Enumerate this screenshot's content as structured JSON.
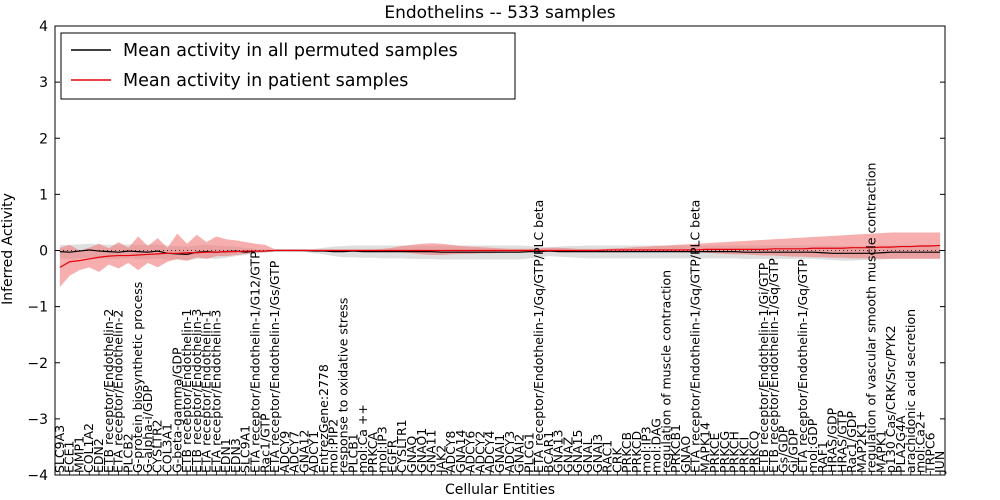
{
  "chart_data": {
    "type": "line",
    "title": "Endothelins -- 533 samples",
    "xlabel": "Cellular Entities",
    "ylabel": "Inferred Activity",
    "ylim": [
      -4,
      4
    ],
    "yticks": [
      "−4",
      "−3",
      "−2",
      "−1",
      "0",
      "1",
      "2",
      "3",
      "4"
    ],
    "grid": false,
    "legend_position": "top-left",
    "colors": {
      "permuted_line": "#000000",
      "permuted_band": "#c8c8c8",
      "patient_line": "#e8000b",
      "patient_band": "#f07878"
    },
    "categories": [
      "SLC9A3",
      "ECE1",
      "MMP1",
      "COL1A2",
      "EDN2",
      "ETB receptor/Endothelin-2",
      "ETA receptor/Endothelin-2",
      "PLCB2",
      "G-protein biosynthetic process",
      "G-alpha-i/GDP",
      "CYSLTR2",
      "COL3A1",
      "G-beta-gamma/GDP",
      "ETB receptor/Endothelin-1",
      "ETB receptor/Endothelin-3",
      "ETA receptor/Endothelin-1",
      "ETA receptor/Endothelin-3",
      "EDN1",
      "EDN3",
      "SLC9A1",
      "ETA receptor/Endothelin-1/G12/GTP",
      "Rac1/GTP",
      "ETA receptor/Endothelin-1/Gs/GTP",
      "ADCY9",
      "ADCY7",
      "GNA12",
      "ADCY1",
      "EntrezGene:2778",
      "mol:PIP2",
      "response to oxidative stress",
      "PLCB1",
      "mol:Ca ++",
      "PRKCA",
      "mol:IP3",
      "EGFR",
      "CYSLTR1",
      "GNAQ",
      "GNAO1",
      "GNA11",
      "JAK2",
      "ADCY8",
      "GNA14",
      "ADCY6",
      "ADCY2",
      "ADCY4",
      "GNAI1",
      "ADCY3",
      "GNAI2",
      "PLCG1",
      "ETA receptor/Endothelin-1/Gq/GTP/PLC beta",
      "BCAR1",
      "GNA13",
      "GNAZ",
      "GNA15",
      "GNAL",
      "GNAI3",
      "RAC1",
      "CRK",
      "PRKCB",
      "PRKCD",
      "mol:IP3",
      "mol:DAG",
      "regulation of muscle contraction",
      "PRKCB1",
      "GNAO",
      "ETA receptor/Endothelin-1/Gq/GTP/PLC beta",
      "MAPK14",
      "PRKCE",
      "PRKCG",
      "PRKCH",
      "PRKCI",
      "PRKCQ",
      "ETB receptor/Endothelin-1/Gi/GTP",
      "ETB receptor/Endothelin-1/Gq/GTP",
      "Gs/GDP",
      "Gi/GDP",
      "ETA receptor/Endothelin-1/Gq/GTP",
      "mol:GDP",
      "RAF1",
      "HRAS/GDP",
      "HRAS/GTP",
      "Rac1/GDP",
      "MAP2K1",
      "regulation of vascular smooth muscle contraction",
      "MAPK1",
      "p130 Cas/CRK/Src/PYK2",
      "PLA2G4A",
      "arachidonic acid secretion",
      "mol:Ca2+",
      "TRPC6",
      "JUN"
    ],
    "series": [
      {
        "name": "Mean activity in all permuted samples",
        "values": [
          -0.02,
          -0.03,
          -0.01,
          0.01,
          -0.01,
          -0.02,
          -0.03,
          -0.01,
          -0.02,
          -0.03,
          -0.01,
          -0.05,
          -0.06,
          -0.07,
          -0.03,
          -0.02,
          -0.03,
          -0.02,
          -0.01,
          -0.03,
          -0.01,
          -0.01,
          0.0,
          0.0,
          0.0,
          0.0,
          -0.01,
          -0.01,
          -0.02,
          -0.02,
          -0.01,
          -0.02,
          -0.02,
          -0.02,
          -0.02,
          -0.02,
          -0.02,
          -0.02,
          -0.02,
          -0.03,
          -0.03,
          -0.03,
          -0.03,
          -0.03,
          -0.03,
          -0.03,
          -0.03,
          -0.03,
          -0.02,
          -0.02,
          -0.01,
          -0.02,
          -0.02,
          -0.02,
          -0.02,
          -0.02,
          -0.02,
          -0.02,
          -0.02,
          -0.02,
          -0.02,
          -0.02,
          -0.02,
          -0.02,
          -0.02,
          -0.02,
          -0.02,
          -0.02,
          -0.02,
          -0.02,
          -0.03,
          -0.03,
          -0.03,
          -0.03,
          -0.03,
          -0.03,
          -0.03,
          -0.03,
          -0.04,
          -0.05,
          -0.05,
          -0.05,
          -0.05,
          -0.05,
          -0.04,
          -0.03,
          -0.03,
          -0.03,
          -0.03,
          -0.03,
          -0.03
        ],
        "lower": [
          -0.14,
          -0.15,
          -0.14,
          -0.13,
          -0.14,
          -0.15,
          -0.15,
          -0.14,
          -0.15,
          -0.15,
          -0.14,
          -0.16,
          -0.17,
          -0.18,
          -0.15,
          -0.14,
          -0.15,
          -0.13,
          -0.1,
          -0.08,
          -0.05,
          -0.04,
          -0.02,
          -0.02,
          -0.02,
          -0.03,
          -0.05,
          -0.07,
          -0.1,
          -0.12,
          -0.12,
          -0.13,
          -0.13,
          -0.14,
          -0.14,
          -0.14,
          -0.15,
          -0.15,
          -0.15,
          -0.16,
          -0.16,
          -0.16,
          -0.16,
          -0.16,
          -0.16,
          -0.16,
          -0.16,
          -0.16,
          -0.14,
          -0.12,
          -0.1,
          -0.11,
          -0.12,
          -0.13,
          -0.14,
          -0.14,
          -0.14,
          -0.14,
          -0.14,
          -0.14,
          -0.14,
          -0.14,
          -0.14,
          -0.14,
          -0.14,
          -0.14,
          -0.14,
          -0.14,
          -0.14,
          -0.14,
          -0.15,
          -0.15,
          -0.15,
          -0.15,
          -0.15,
          -0.15,
          -0.15,
          -0.15,
          -0.16,
          -0.17,
          -0.18,
          -0.18,
          -0.17,
          -0.17,
          -0.16,
          -0.15,
          -0.14,
          -0.14,
          -0.14,
          -0.14,
          -0.14
        ],
        "upper": [
          0.1,
          0.1,
          0.11,
          0.12,
          0.11,
          0.1,
          0.1,
          0.11,
          0.1,
          0.1,
          0.11,
          0.09,
          0.08,
          0.07,
          0.09,
          0.1,
          0.09,
          0.08,
          0.07,
          0.05,
          0.03,
          0.02,
          0.02,
          0.02,
          0.02,
          0.02,
          0.03,
          0.05,
          0.07,
          0.08,
          0.09,
          0.09,
          0.09,
          0.09,
          0.09,
          0.09,
          0.09,
          0.09,
          0.09,
          0.09,
          0.09,
          0.09,
          0.09,
          0.09,
          0.09,
          0.09,
          0.09,
          0.09,
          0.08,
          0.06,
          0.06,
          0.07,
          0.08,
          0.08,
          0.09,
          0.09,
          0.09,
          0.09,
          0.09,
          0.09,
          0.09,
          0.09,
          0.09,
          0.09,
          0.09,
          0.09,
          0.09,
          0.09,
          0.09,
          0.09,
          0.09,
          0.09,
          0.09,
          0.09,
          0.09,
          0.09,
          0.09,
          0.09,
          0.09,
          0.08,
          0.08,
          0.08,
          0.08,
          0.08,
          0.09,
          0.09,
          0.1,
          0.1,
          0.1,
          0.1,
          0.1
        ]
      },
      {
        "name": "Mean activity in patient samples",
        "values": [
          -0.3,
          -0.2,
          -0.18,
          -0.15,
          -0.12,
          -0.1,
          -0.09,
          -0.09,
          -0.08,
          -0.07,
          -0.06,
          -0.05,
          -0.05,
          -0.04,
          -0.04,
          -0.03,
          -0.03,
          -0.02,
          -0.02,
          -0.01,
          -0.01,
          -0.01,
          0.0,
          0.0,
          0.0,
          0.0,
          0.0,
          0.0,
          0.0,
          0.0,
          0.0,
          0.0,
          0.0,
          0.0,
          0.0,
          0.0,
          0.0,
          0.0,
          0.0,
          0.0,
          0.0,
          0.0,
          0.0,
          0.0,
          0.0,
          0.0,
          0.0,
          0.0,
          0.0,
          0.0,
          0.0,
          0.0,
          0.0,
          0.0,
          0.0,
          0.0,
          0.01,
          0.01,
          0.01,
          0.01,
          0.01,
          0.01,
          0.01,
          0.01,
          0.01,
          0.01,
          0.02,
          0.02,
          0.02,
          0.02,
          0.02,
          0.02,
          0.02,
          0.03,
          0.03,
          0.03,
          0.03,
          0.04,
          0.04,
          0.04,
          0.04,
          0.05,
          0.05,
          0.05,
          0.06,
          0.06,
          0.07,
          0.07,
          0.08,
          0.08,
          0.09
        ],
        "lower": [
          -0.65,
          -0.45,
          -0.35,
          -0.3,
          -0.38,
          -0.25,
          -0.32,
          -0.22,
          -0.35,
          -0.22,
          -0.3,
          -0.2,
          -0.15,
          -0.18,
          -0.12,
          -0.15,
          -0.1,
          -0.1,
          -0.08,
          -0.06,
          -0.04,
          -0.03,
          -0.01,
          -0.01,
          -0.01,
          -0.01,
          -0.01,
          -0.01,
          -0.01,
          -0.01,
          -0.01,
          -0.01,
          -0.01,
          -0.01,
          -0.02,
          -0.03,
          -0.05,
          -0.07,
          -0.08,
          -0.08,
          -0.07,
          -0.06,
          -0.06,
          -0.05,
          -0.05,
          -0.04,
          -0.03,
          -0.03,
          -0.02,
          -0.02,
          -0.02,
          -0.02,
          -0.02,
          -0.02,
          -0.02,
          -0.02,
          -0.01,
          -0.01,
          -0.01,
          -0.01,
          -0.01,
          -0.02,
          -0.02,
          -0.03,
          -0.03,
          -0.03,
          -0.04,
          -0.05,
          -0.06,
          -0.07,
          -0.07,
          -0.08,
          -0.09,
          -0.09,
          -0.1,
          -0.11,
          -0.11,
          -0.12,
          -0.12,
          -0.13,
          -0.13,
          -0.14,
          -0.14,
          -0.14,
          -0.15,
          -0.15,
          -0.15,
          -0.15,
          -0.15,
          -0.15,
          -0.15
        ],
        "upper": [
          0.05,
          0.1,
          0.0,
          0.05,
          0.12,
          0.04,
          0.15,
          0.05,
          0.25,
          0.08,
          0.22,
          0.05,
          0.3,
          0.12,
          0.28,
          0.15,
          0.25,
          0.2,
          0.18,
          0.15,
          0.12,
          0.1,
          0.02,
          0.02,
          0.02,
          0.02,
          0.02,
          0.02,
          0.02,
          0.02,
          0.02,
          0.02,
          0.02,
          0.03,
          0.05,
          0.08,
          0.1,
          0.12,
          0.13,
          0.12,
          0.1,
          0.08,
          0.07,
          0.06,
          0.05,
          0.04,
          0.03,
          0.03,
          0.03,
          0.04,
          0.05,
          0.05,
          0.04,
          0.03,
          0.03,
          0.03,
          0.03,
          0.04,
          0.05,
          0.06,
          0.07,
          0.08,
          0.09,
          0.1,
          0.11,
          0.12,
          0.13,
          0.14,
          0.15,
          0.16,
          0.17,
          0.18,
          0.19,
          0.2,
          0.21,
          0.22,
          0.23,
          0.24,
          0.25,
          0.26,
          0.27,
          0.28,
          0.29,
          0.3,
          0.31,
          0.32,
          0.32,
          0.32,
          0.32,
          0.32,
          0.32
        ]
      }
    ]
  }
}
